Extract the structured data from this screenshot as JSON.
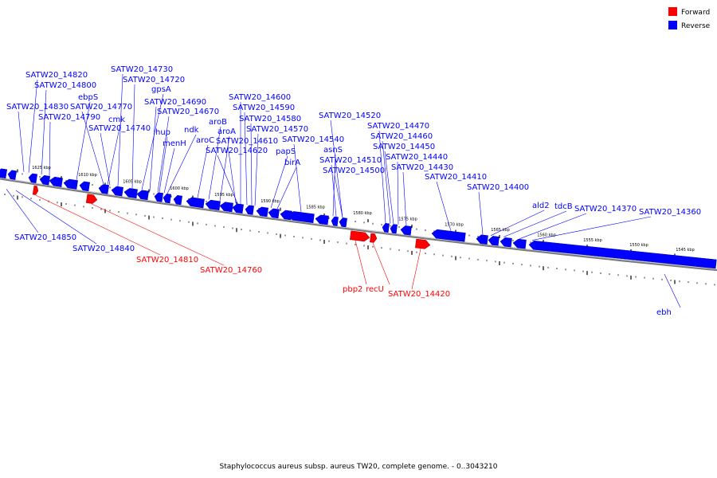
{
  "legend": {
    "forward_label": "Forward",
    "reverse_label": "Reverse",
    "forward_color": "#ff0000",
    "reverse_color": "#0000ff"
  },
  "caption": "Staphylococcus aureus subsp. aureus TW20, complete genome. - 0..3043210",
  "coordinate_labels": [
    "1625 kbp",
    "1610 kbp",
    "1605 kbp",
    "1600 kbp",
    "1595 kbp",
    "1590 kbp",
    "1585 kbp",
    "1580 kbp",
    "1575 kbp",
    "1570 kbp",
    "1565 kbp",
    "1560 kbp",
    "1555 kbp",
    "1550 kbp",
    "1545 kbp"
  ],
  "gene_labels": {
    "reverse": [
      "SATW20_14820",
      "SATW20_14800",
      "SATW20_14830",
      "ebpS",
      "SATW20_14770",
      "SATW20_14790",
      "cmk",
      "SATW20_14740",
      "SATW20_14730",
      "SATW20_14720",
      "gpsA",
      "SATW20_14690",
      "SATW20_14670",
      "hup",
      "ndk",
      "menH",
      "aroB",
      "aroA",
      "aroC",
      "SATW20_14600",
      "SATW20_14590",
      "SATW20_14580",
      "SATW20_14570",
      "SATW20_14610",
      "SATW20_14620",
      "papS",
      "birA",
      "SATW20_14540",
      "asnS",
      "SATW20_14520",
      "SATW20_14510",
      "SATW20_14500",
      "SATW20_14470",
      "SATW20_14460",
      "SATW20_14450",
      "SATW20_14440",
      "SATW20_14430",
      "SATW20_14410",
      "SATW20_14400",
      "ald2",
      "tdcB",
      "SATW20_14370",
      "SATW20_14360",
      "SATW20_14850",
      "SATW20_14840",
      "ebh"
    ],
    "forward": [
      "SATW20_14810",
      "SATW20_14760",
      "pbp2",
      "recU",
      "SATW20_14420"
    ]
  }
}
